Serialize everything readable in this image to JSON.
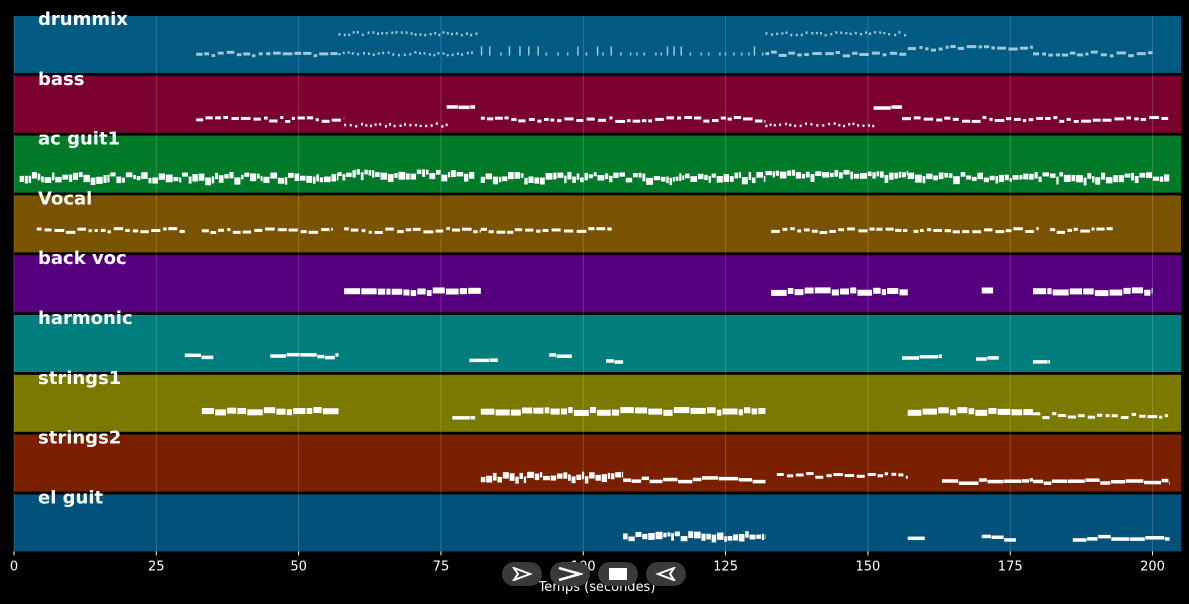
{
  "chart_data": {
    "type": "piano-roll",
    "xlabel": "Temps (secondes)",
    "xlim": [
      0,
      205
    ],
    "xticks": [
      0,
      25,
      50,
      75,
      100,
      125,
      150,
      175,
      200
    ],
    "grid": true,
    "tracks": [
      {
        "name": "drummix",
        "color": "#005a82",
        "note_color": "#a0c8dc",
        "segments": [
          {
            "start": 32,
            "end": 57,
            "level": 0.5,
            "style": "dashed"
          },
          {
            "start": 57,
            "end": 81,
            "level": 0.5,
            "style": "dotted"
          },
          {
            "start": 57,
            "end": 82,
            "level": 0.85,
            "style": "dotted"
          },
          {
            "start": 82,
            "end": 132,
            "level": 0.5,
            "style": "sparse"
          },
          {
            "start": 132,
            "end": 157,
            "level": 0.5,
            "style": "dashed"
          },
          {
            "start": 132,
            "end": 157,
            "level": 0.85,
            "style": "dotted"
          },
          {
            "start": 157,
            "end": 179,
            "level": 0.6,
            "style": "dashed"
          },
          {
            "start": 179,
            "end": 200,
            "level": 0.5,
            "style": "dashed"
          }
        ]
      },
      {
        "name": "bass",
        "color": "#7a002e",
        "note_color": "#ffffff",
        "segments": [
          {
            "start": 32,
            "end": 58,
            "level": 0.4,
            "style": "dashed"
          },
          {
            "start": 58,
            "end": 76,
            "level": 0.3,
            "style": "dotted"
          },
          {
            "start": 76,
            "end": 81,
            "level": 0.6,
            "style": "solid"
          },
          {
            "start": 82,
            "end": 132,
            "level": 0.4,
            "style": "dashed"
          },
          {
            "start": 132,
            "end": 151,
            "level": 0.3,
            "style": "dotted"
          },
          {
            "start": 151,
            "end": 156,
            "level": 0.6,
            "style": "solid"
          },
          {
            "start": 156,
            "end": 203,
            "level": 0.4,
            "style": "dashed"
          }
        ]
      },
      {
        "name": "ac guit1",
        "color": "#007a28",
        "note_color": "#ffffff",
        "segments": [
          {
            "start": 1,
            "end": 57,
            "level": 0.45,
            "style": "dense"
          },
          {
            "start": 57,
            "end": 81,
            "level": 0.5,
            "style": "dense"
          },
          {
            "start": 82,
            "end": 132,
            "level": 0.45,
            "style": "dense"
          },
          {
            "start": 132,
            "end": 157,
            "level": 0.5,
            "style": "dense"
          },
          {
            "start": 157,
            "end": 203,
            "level": 0.45,
            "style": "dense"
          }
        ]
      },
      {
        "name": "Vocal",
        "color": "#7a5300",
        "note_color": "#ffffff",
        "segments": [
          {
            "start": 4,
            "end": 30,
            "level": 0.55,
            "style": "dashed"
          },
          {
            "start": 33,
            "end": 56,
            "level": 0.55,
            "style": "dashed"
          },
          {
            "start": 58,
            "end": 82,
            "level": 0.55,
            "style": "dashed"
          },
          {
            "start": 82,
            "end": 105,
            "level": 0.55,
            "style": "dashed"
          },
          {
            "start": 133,
            "end": 157,
            "level": 0.55,
            "style": "dashed"
          },
          {
            "start": 158,
            "end": 180,
            "level": 0.55,
            "style": "dashed"
          },
          {
            "start": 182,
            "end": 193,
            "level": 0.55,
            "style": "dashed"
          }
        ]
      },
      {
        "name": "back voc",
        "color": "#560080",
        "note_color": "#ffffff",
        "segments": [
          {
            "start": 58,
            "end": 82,
            "level": 0.55,
            "style": "blocks"
          },
          {
            "start": 133,
            "end": 157,
            "level": 0.55,
            "style": "blocks"
          },
          {
            "start": 170,
            "end": 172,
            "level": 0.55,
            "style": "blocks"
          },
          {
            "start": 179,
            "end": 200,
            "level": 0.55,
            "style": "blocks"
          }
        ]
      },
      {
        "name": "harmonic",
        "color": "#007e7e",
        "note_color": "#ffffff",
        "segments": [
          {
            "start": 30,
            "end": 35,
            "level": 0.45,
            "style": "solid"
          },
          {
            "start": 45,
            "end": 57,
            "level": 0.45,
            "style": "solid"
          },
          {
            "start": 80,
            "end": 85,
            "level": 0.4,
            "style": "solid"
          },
          {
            "start": 94,
            "end": 98,
            "level": 0.45,
            "style": "solid"
          },
          {
            "start": 104,
            "end": 107,
            "level": 0.35,
            "style": "solid"
          },
          {
            "start": 156,
            "end": 163,
            "level": 0.45,
            "style": "solid"
          },
          {
            "start": 169,
            "end": 173,
            "level": 0.4,
            "style": "solid"
          },
          {
            "start": 179,
            "end": 182,
            "level": 0.35,
            "style": "solid"
          }
        ]
      },
      {
        "name": "strings1",
        "color": "#7a7a00",
        "note_color": "#ffffff",
        "segments": [
          {
            "start": 33,
            "end": 57,
            "level": 0.55,
            "style": "blocks"
          },
          {
            "start": 77,
            "end": 81,
            "level": 0.45,
            "style": "solid"
          },
          {
            "start": 82,
            "end": 132,
            "level": 0.55,
            "style": "blocks"
          },
          {
            "start": 157,
            "end": 179,
            "level": 0.55,
            "style": "blocks"
          },
          {
            "start": 179,
            "end": 203,
            "level": 0.45,
            "style": "dashed"
          }
        ]
      },
      {
        "name": "strings2",
        "color": "#7a2000",
        "note_color": "#ffffff",
        "segments": [
          {
            "start": 82,
            "end": 107,
            "level": 0.45,
            "style": "dense"
          },
          {
            "start": 107,
            "end": 132,
            "level": 0.38,
            "style": "solid"
          },
          {
            "start": 134,
            "end": 157,
            "level": 0.45,
            "style": "dashed"
          },
          {
            "start": 163,
            "end": 179,
            "level": 0.35,
            "style": "solid"
          },
          {
            "start": 179,
            "end": 203,
            "level": 0.35,
            "style": "solid"
          }
        ]
      },
      {
        "name": "el guit",
        "color": "#00527a",
        "note_color": "#ffffff",
        "segments": [
          {
            "start": 107,
            "end": 132,
            "level": 0.45,
            "style": "dense"
          },
          {
            "start": 157,
            "end": 160,
            "level": 0.4,
            "style": "solid"
          },
          {
            "start": 170,
            "end": 176,
            "level": 0.4,
            "style": "solid"
          },
          {
            "start": 186,
            "end": 203,
            "level": 0.4,
            "style": "solid"
          }
        ]
      }
    ]
  },
  "controls": [
    {
      "name": "play-button",
      "icon": "play-icon"
    },
    {
      "name": "fast-forward-button",
      "icon": "fast-forward-icon"
    },
    {
      "name": "stop-button",
      "icon": "stop-icon"
    },
    {
      "name": "rewind-button",
      "icon": "rewind-icon"
    }
  ]
}
